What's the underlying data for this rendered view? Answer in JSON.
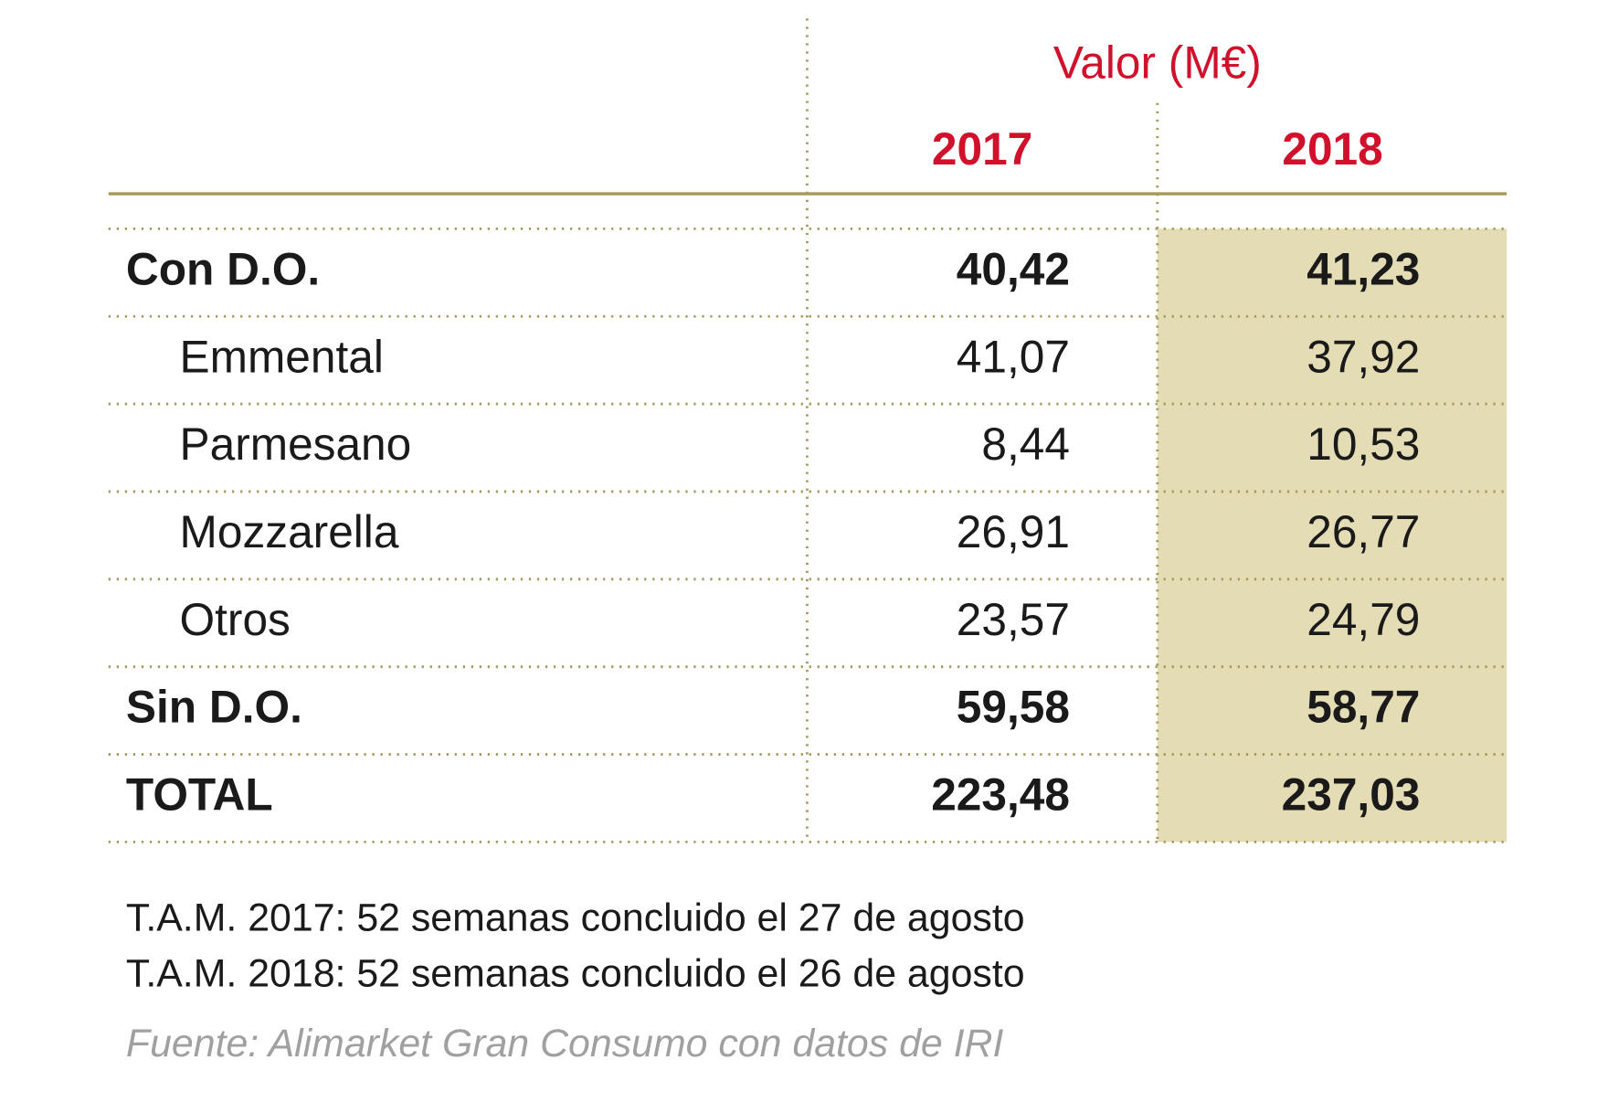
{
  "header": {
    "title": "Valor (M€)",
    "columns": [
      "2017",
      "2018"
    ]
  },
  "table": {
    "rows": [
      [
        "Con D.O.",
        "40,42",
        "41,23"
      ],
      [
        "Emmental",
        "41,07",
        "37,92"
      ],
      [
        "Parmesano",
        "8,44",
        "10,53"
      ],
      [
        "Mozzarella",
        "26,91",
        "26,77"
      ],
      [
        "Otros",
        "23,57",
        "24,79"
      ],
      [
        "Sin D.O.",
        "59,58",
        "58,77"
      ],
      [
        "TOTAL",
        "223,48",
        "237,03"
      ]
    ]
  },
  "notes": [
    "T.A.M. 2017: 52 semanas concluido el 27 de agosto",
    "T.A.M. 2018: 52 semanas concluido el 26 de agosto"
  ],
  "source": "Fuente: Alimarket Gran Consumo con datos de IRI"
}
